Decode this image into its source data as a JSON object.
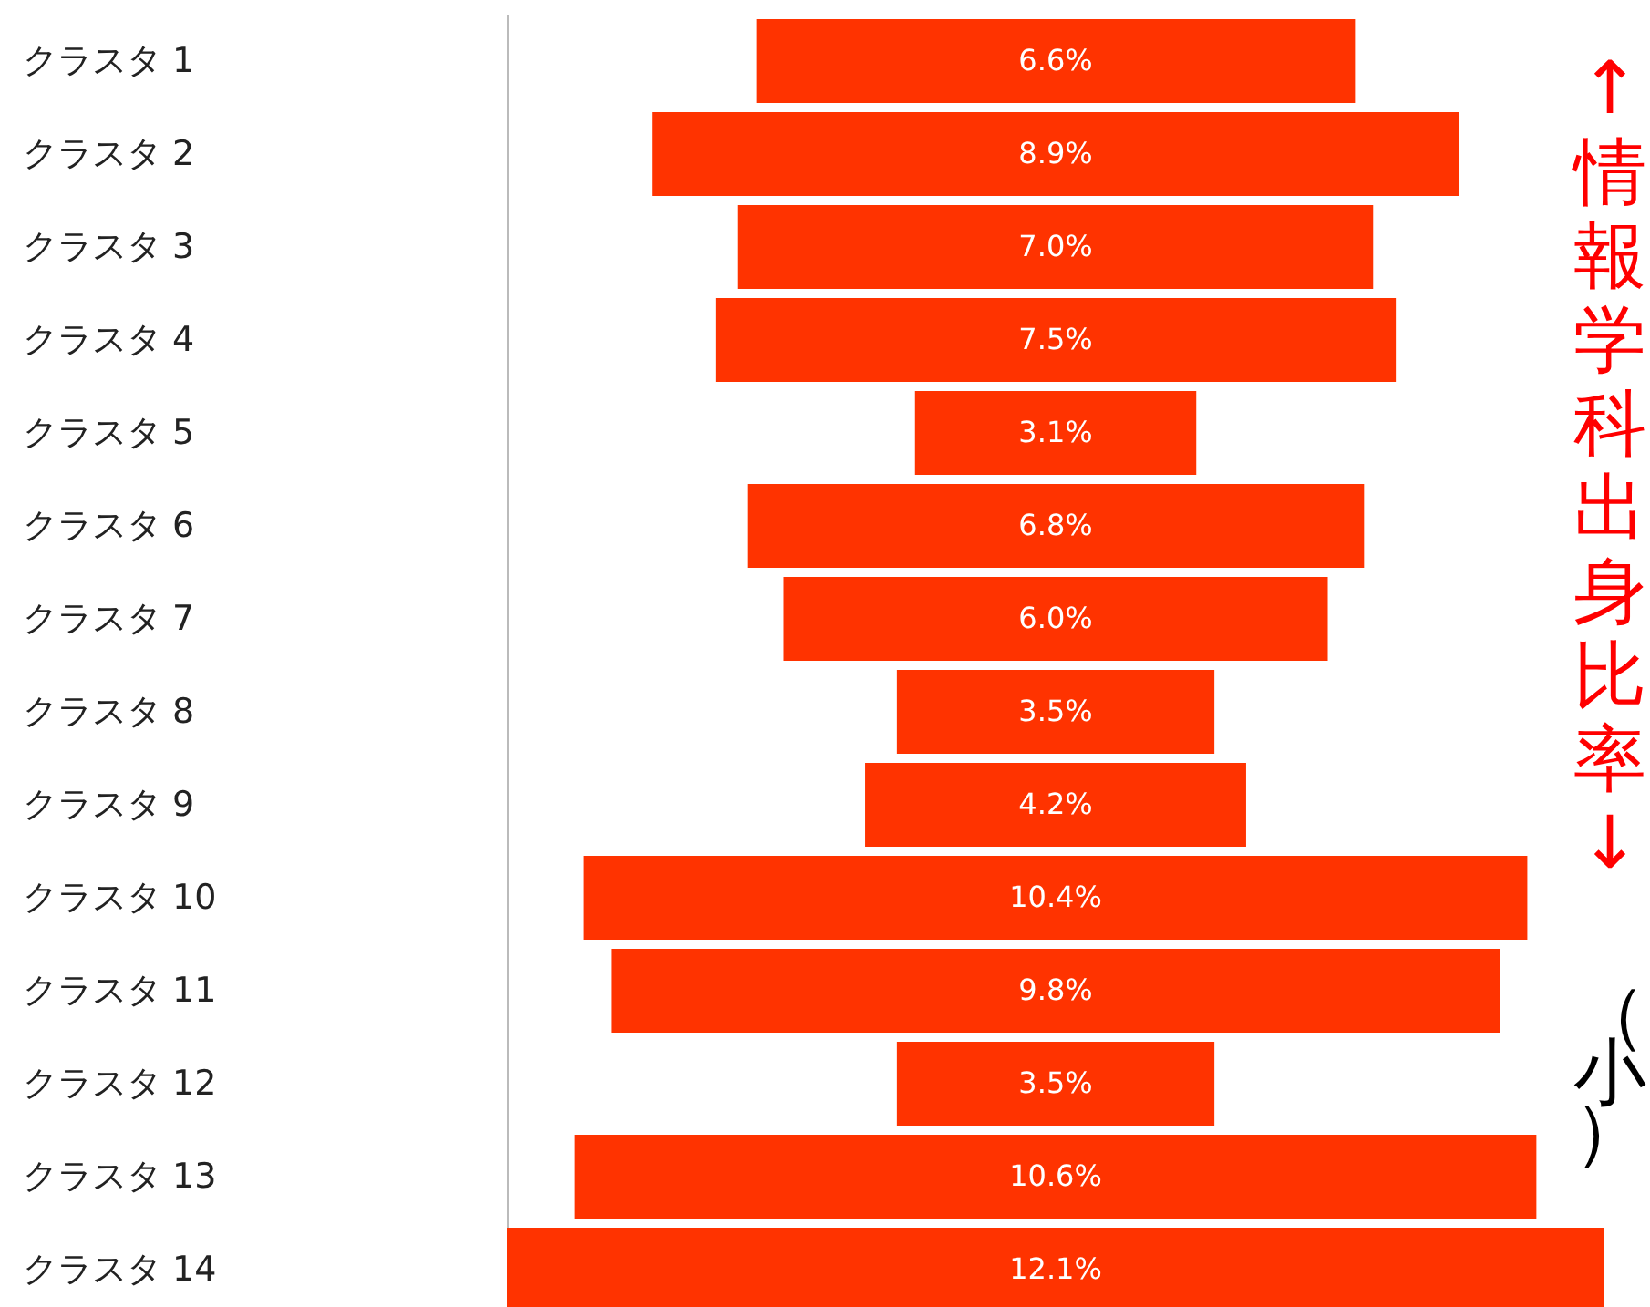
{
  "chart_data": {
    "type": "other",
    "categories": [
      "クラスタ 1",
      "クラスタ 2",
      "クラスタ 3",
      "クラスタ 4",
      "クラスタ 5",
      "クラスタ 6",
      "クラスタ 7",
      "クラスタ 8",
      "クラスタ 9",
      "クラスタ 10",
      "クラスタ 11",
      "クラスタ 12",
      "クラスタ 13",
      "クラスタ 14"
    ],
    "values": [
      6.6,
      8.9,
      7.0,
      7.5,
      3.1,
      6.8,
      6.0,
      3.5,
      4.2,
      10.4,
      9.8,
      3.5,
      10.6,
      12.1
    ],
    "value_labels": [
      "6.6%",
      "8.9%",
      "7.0%",
      "7.5%",
      "3.1%",
      "6.8%",
      "6.0%",
      "3.5%",
      "4.2%",
      "10.4%",
      "9.8%",
      "3.5%",
      "10.6%",
      "12.1%"
    ],
    "color": "#ff3300",
    "annotations": [
      "↑情報学科出身比率↓",
      "（小）"
    ]
  }
}
